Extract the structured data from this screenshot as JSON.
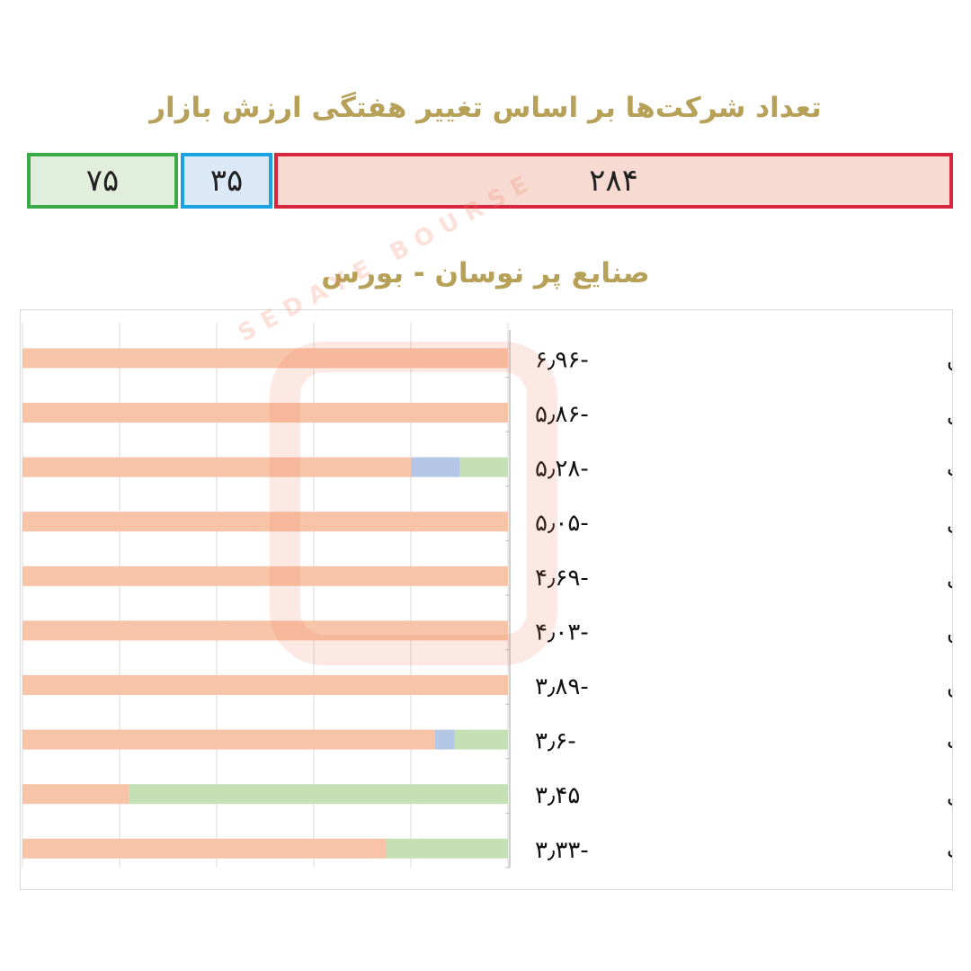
{
  "header": {
    "title": "تعداد شرکت‌ها بر اساس تغییر هفتگی ارزش بازار"
  },
  "counts": {
    "negative": "۲۸۴",
    "neutral": "۳۵",
    "positive": "۷۵",
    "colors": {
      "negative": "#d7263d",
      "neutral": "#1aa3e0",
      "positive": "#3bab48"
    }
  },
  "watermark": "SEDAYE BOURSE",
  "chart_data": {
    "type": "bar",
    "orientation": "horizontal-stacked",
    "title": "صنایع پر نوسان - بورس",
    "grid": true,
    "categories": [
      "ساخت رادیو و تلویزیون",
      "حمل و نقل و انبارداری",
      "ماشین آلات و تجهیزات",
      "استخراج نفت، گاز و خدمات جنبي",
      "محصولات کاغذی",
      "رایانه و فعالیتهای وابسته به آن",
      "استخراج سایر معادن",
      "خودرو و ساخت قطعات",
      "فرآورده های نفتي",
      "مخابرات"
    ],
    "value_labels": [
      "۶٫۹۶-",
      "۵٫۸۶-",
      "۵٫۲۸-",
      "۵٫۰۵-",
      "۴٫۶۹-",
      "۴٫۰۳-",
      "۳٫۸۹-",
      "۳٫۶-",
      "۳٫۴۵",
      "۳٫۳۳-"
    ],
    "values": [
      -6.96,
      -5.86,
      -5.28,
      -5.05,
      -4.69,
      -4.03,
      -3.89,
      -3.6,
      3.45,
      -3.33
    ],
    "series": [
      {
        "color": "#f7c4a8",
        "values": [
          100,
          100,
          80,
          100,
          100,
          100,
          100,
          85,
          22,
          75
        ]
      },
      {
        "color": "#b4c7e7",
        "values": [
          0,
          0,
          10,
          0,
          0,
          0,
          0,
          4,
          0,
          0
        ]
      },
      {
        "color": "#c5e0b4",
        "values": [
          0,
          0,
          10,
          0,
          0,
          0,
          0,
          11,
          78,
          25
        ]
      }
    ],
    "xlim": [
      0,
      100
    ]
  }
}
